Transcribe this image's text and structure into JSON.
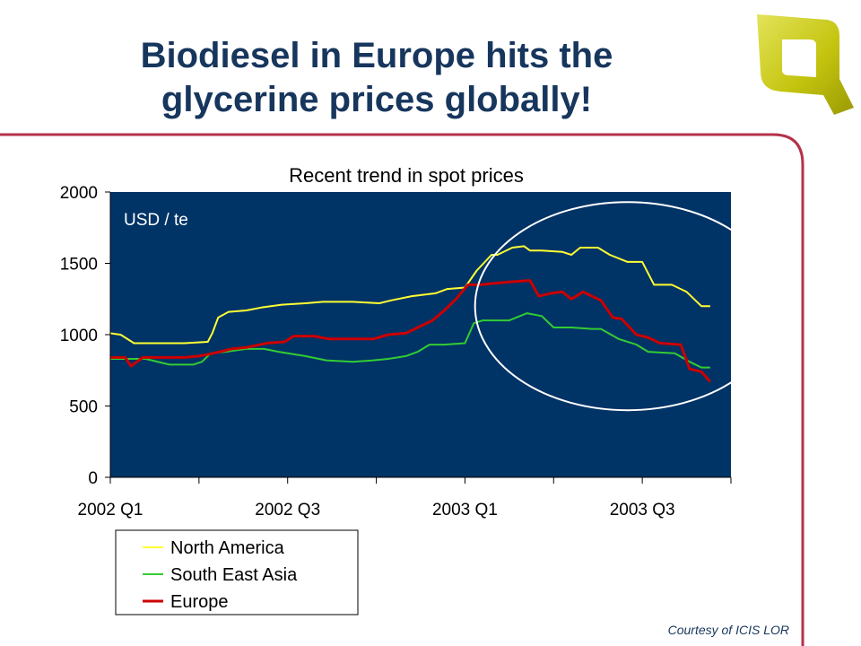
{
  "slide": {
    "title_line1": "Biodiesel in Europe hits the",
    "title_line2": "glycerine prices globally!",
    "credit": "Courtesy of ICIS LOR",
    "logo_icon": "q-logo-icon"
  },
  "colors": {
    "title": "#17365d",
    "frame": "#b5314a",
    "plot_bg": "#003366",
    "north_america": "#ffff33",
    "south_east_asia": "#33cc33",
    "europe": "#cc0000",
    "highlight_circle": "#ffffff",
    "logo": "#c9c813"
  },
  "chart_data": {
    "type": "line",
    "title": "Recent trend in spot prices",
    "annotation": "USD / te",
    "xlabel": "",
    "ylabel": "",
    "x_range": [
      0,
      21
    ],
    "ylim": [
      0,
      2000
    ],
    "yticks": [
      0,
      500,
      1000,
      1500,
      2000
    ],
    "xtick_labels": [
      {
        "x": 0,
        "label": "2002 Q1"
      },
      {
        "x": 6,
        "label": "2002 Q3"
      },
      {
        "x": 12,
        "label": "2003 Q1"
      },
      {
        "x": 18,
        "label": "2003 Q3"
      }
    ],
    "x_minor_ticks": [
      0,
      3,
      6,
      9,
      12,
      15,
      18,
      21
    ],
    "grid": false,
    "legend_position": "bottom-left",
    "highlight": {
      "shape": "circle",
      "x_center": 17.5,
      "y_center": 1200,
      "note": "recent decline highlighted"
    },
    "series": [
      {
        "name": "North America",
        "x": [
          0,
          0.35,
          0.8,
          1.5,
          2.5,
          3.3,
          3.45,
          3.65,
          4.0,
          4.6,
          5.1,
          5.8,
          6.6,
          7.2,
          8.2,
          9.1,
          9.5,
          10.2,
          11.0,
          11.4,
          12.0,
          12.4,
          12.9,
          13.1,
          13.6,
          14.0,
          14.2,
          14.6,
          15.3,
          15.6,
          15.9,
          16.5,
          16.9,
          17.5,
          18.0,
          18.4,
          19.0,
          19.5,
          20.0,
          20.3
        ],
        "values": [
          1010,
          1000,
          940,
          940,
          940,
          950,
          1010,
          1120,
          1160,
          1170,
          1190,
          1210,
          1220,
          1230,
          1230,
          1220,
          1240,
          1270,
          1290,
          1320,
          1330,
          1450,
          1560,
          1560,
          1610,
          1620,
          1590,
          1590,
          1580,
          1560,
          1610,
          1610,
          1560,
          1510,
          1510,
          1350,
          1350,
          1300,
          1200,
          1200
        ]
      },
      {
        "name": "South East Asia",
        "x": [
          0,
          0.8,
          1.2,
          2.0,
          2.8,
          3.1,
          3.4,
          3.9,
          4.6,
          5.2,
          5.7,
          6.6,
          7.3,
          8.2,
          8.9,
          9.4,
          10.0,
          10.4,
          10.8,
          11.3,
          12.0,
          12.3,
          12.6,
          13.1,
          13.5,
          14.1,
          14.6,
          15.0,
          15.6,
          16.3,
          16.6,
          17.2,
          17.8,
          18.2,
          19.1,
          19.6,
          20.0,
          20.3
        ],
        "values": [
          830,
          830,
          830,
          790,
          790,
          810,
          870,
          880,
          900,
          900,
          880,
          850,
          820,
          810,
          820,
          830,
          850,
          880,
          930,
          930,
          940,
          1080,
          1100,
          1100,
          1100,
          1150,
          1130,
          1050,
          1050,
          1040,
          1040,
          970,
          930,
          880,
          870,
          810,
          770,
          770
        ]
      },
      {
        "name": "Europe",
        "x": [
          0,
          0.5,
          0.7,
          1.1,
          1.5,
          2.5,
          3.0,
          3.5,
          4.1,
          4.6,
          5.3,
          5.9,
          6.2,
          6.9,
          7.4,
          8.1,
          8.9,
          9.4,
          10.0,
          10.3,
          10.9,
          11.3,
          11.7,
          12.1,
          12.5,
          13.0,
          13.5,
          14.2,
          14.5,
          14.9,
          15.3,
          15.6,
          16.0,
          16.2,
          16.6,
          17.0,
          17.3,
          17.8,
          18.2,
          18.6,
          19.3,
          19.6,
          20.0,
          20.3
        ],
        "values": [
          840,
          840,
          780,
          840,
          840,
          840,
          850,
          870,
          900,
          910,
          940,
          950,
          990,
          990,
          970,
          970,
          970,
          1000,
          1010,
          1040,
          1100,
          1170,
          1250,
          1350,
          1350,
          1360,
          1370,
          1380,
          1270,
          1290,
          1300,
          1250,
          1300,
          1280,
          1240,
          1120,
          1110,
          1000,
          980,
          940,
          930,
          760,
          740,
          670
        ]
      }
    ]
  }
}
